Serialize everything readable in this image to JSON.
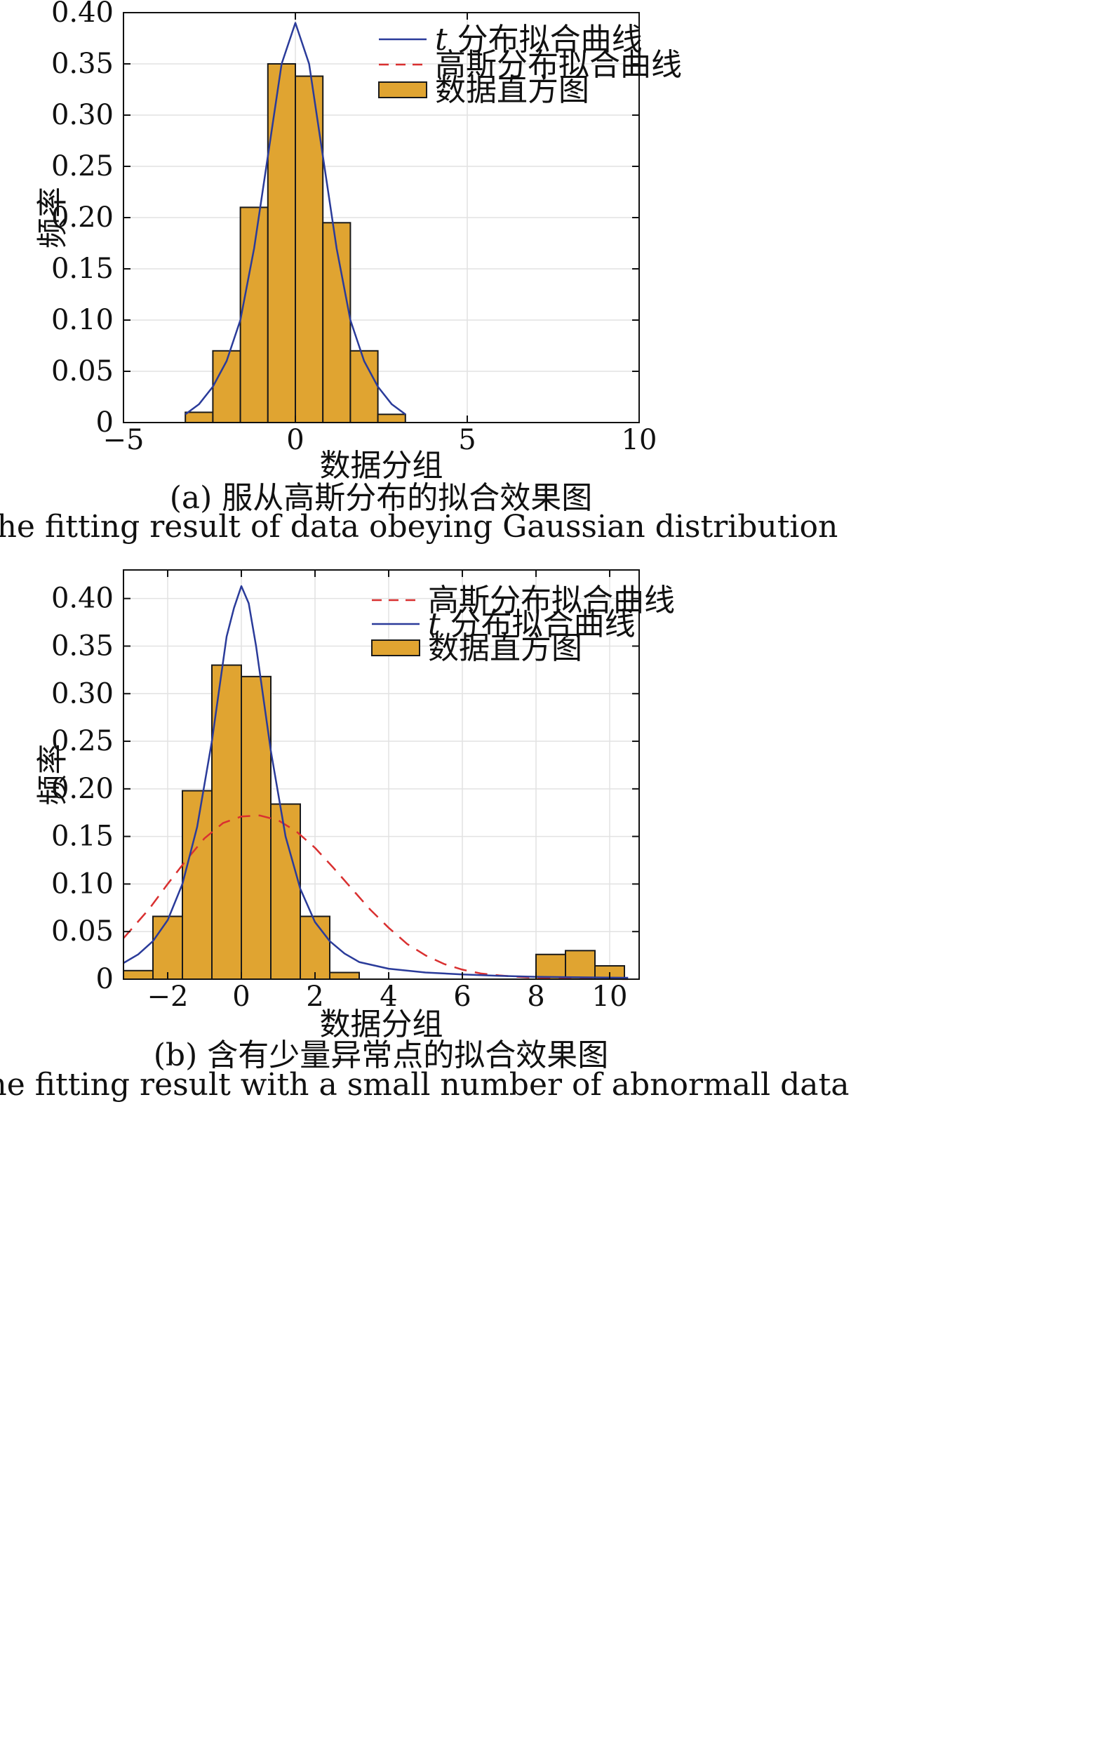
{
  "colors": {
    "bar": "#E0A431",
    "bar_edge": "#1a1a1a",
    "t_curve": "#2A3B9A",
    "gauss_curve": "#D93030",
    "grid": "#E2E2E2"
  },
  "chart_data": [
    {
      "type": "bar",
      "id": "a",
      "xlabel": "数据分组",
      "ylabel": "频率",
      "caption_cn": "(a) 服从高斯分布的拟合效果图",
      "caption_en": "(a) The fitting result of data obeying Gaussian distribution",
      "xlim": [
        -5,
        10
      ],
      "ylim": [
        0,
        0.4
      ],
      "xticks": [
        -5,
        0,
        5,
        10
      ],
      "xtick_labels": [
        "−5",
        "0",
        "5",
        "10"
      ],
      "yticks": [
        0,
        0.05,
        0.1,
        0.15,
        0.2,
        0.25,
        0.3,
        0.35,
        0.4
      ],
      "ytick_labels": [
        "0",
        "0.05",
        "0.10",
        "0.15",
        "0.20",
        "0.25",
        "0.30",
        "0.35",
        "0.40"
      ],
      "grid": true,
      "legend_position": "top-right",
      "legend": [
        {
          "name": "t 分布拟合曲线",
          "italic_prefix": "t",
          "text": " 分布拟合曲线",
          "style": "solid-blue"
        },
        {
          "name": "高斯分布拟合曲线",
          "text": "高斯分布拟合曲线",
          "style": "dashed-red"
        },
        {
          "name": "数据直方图",
          "text": "数据直方图",
          "style": "bar"
        }
      ],
      "bins": [
        {
          "x0": -3.2,
          "x1": -2.4,
          "value": 0.01
        },
        {
          "x0": -2.4,
          "x1": -1.6,
          "value": 0.07
        },
        {
          "x0": -1.6,
          "x1": -0.8,
          "value": 0.21
        },
        {
          "x0": -0.8,
          "x1": 0.0,
          "value": 0.35
        },
        {
          "x0": 0.0,
          "x1": 0.8,
          "value": 0.338
        },
        {
          "x0": 0.8,
          "x1": 1.6,
          "value": 0.195
        },
        {
          "x0": 1.6,
          "x1": 2.4,
          "value": 0.07
        },
        {
          "x0": 2.4,
          "x1": 3.2,
          "value": 0.008
        }
      ],
      "curves": [
        {
          "name": "t 分布拟合曲线",
          "style": "solid-blue",
          "x": [
            -3.2,
            -2.8,
            -2.4,
            -2.0,
            -1.6,
            -1.2,
            -0.8,
            -0.4,
            0.0,
            0.4,
            0.8,
            1.2,
            1.6,
            2.0,
            2.4,
            2.8,
            3.2
          ],
          "y": [
            0.008,
            0.018,
            0.035,
            0.06,
            0.1,
            0.17,
            0.26,
            0.35,
            0.39,
            0.35,
            0.26,
            0.17,
            0.1,
            0.06,
            0.035,
            0.018,
            0.008
          ]
        }
      ]
    },
    {
      "type": "bar",
      "id": "b",
      "xlabel": "数据分组",
      "ylabel": "频率",
      "caption_cn": "(b) 含有少量异常点的拟合效果图",
      "caption_en": "(b) The fitting result with a small number of abnormall data",
      "xlim": [
        -3.2,
        10.8
      ],
      "ylim": [
        0,
        0.43
      ],
      "xticks": [
        -2,
        0,
        2,
        4,
        6,
        8,
        10
      ],
      "xtick_labels": [
        "−2",
        "0",
        "2",
        "4",
        "6",
        "8",
        "10"
      ],
      "yticks": [
        0,
        0.05,
        0.1,
        0.15,
        0.2,
        0.25,
        0.3,
        0.35,
        0.4
      ],
      "ytick_labels": [
        "0",
        "0.05",
        "0.10",
        "0.15",
        "0.20",
        "0.25",
        "0.30",
        "0.35",
        "0.40"
      ],
      "grid": true,
      "legend_position": "top-right",
      "legend": [
        {
          "name": "高斯分布拟合曲线",
          "text": "高斯分布拟合曲线",
          "style": "dashed-red"
        },
        {
          "name": "t 分布拟合曲线",
          "italic_prefix": "t",
          "text": " 分布拟合曲线",
          "style": "solid-blue"
        },
        {
          "name": "数据直方图",
          "text": "数据直方图",
          "style": "bar"
        }
      ],
      "bins": [
        {
          "x0": -3.2,
          "x1": -2.4,
          "value": 0.009
        },
        {
          "x0": -2.4,
          "x1": -1.6,
          "value": 0.066
        },
        {
          "x0": -1.6,
          "x1": -0.8,
          "value": 0.198
        },
        {
          "x0": -0.8,
          "x1": 0.0,
          "value": 0.33
        },
        {
          "x0": 0.0,
          "x1": 0.8,
          "value": 0.318
        },
        {
          "x0": 0.8,
          "x1": 1.6,
          "value": 0.184
        },
        {
          "x0": 1.6,
          "x1": 2.4,
          "value": 0.066
        },
        {
          "x0": 2.4,
          "x1": 3.2,
          "value": 0.007
        },
        {
          "x0": 8.0,
          "x1": 8.8,
          "value": 0.026
        },
        {
          "x0": 8.8,
          "x1": 9.6,
          "value": 0.03
        },
        {
          "x0": 9.6,
          "x1": 10.4,
          "value": 0.014
        }
      ],
      "curves": [
        {
          "name": "高斯分布拟合曲线",
          "style": "dashed-red",
          "x": [
            -3.2,
            -2.5,
            -2.0,
            -1.5,
            -1.0,
            -0.5,
            0.0,
            0.5,
            1.0,
            1.5,
            2.0,
            2.5,
            3.0,
            3.5,
            4.0,
            4.5,
            5.0,
            5.5,
            6.0,
            6.5,
            7.0,
            7.5,
            8.0,
            9.0,
            10.0,
            10.5
          ],
          "y": [
            0.043,
            0.074,
            0.1,
            0.125,
            0.148,
            0.164,
            0.171,
            0.172,
            0.167,
            0.155,
            0.138,
            0.117,
            0.095,
            0.073,
            0.054,
            0.037,
            0.025,
            0.016,
            0.01,
            0.006,
            0.004,
            0.0025,
            0.0015,
            0.0006,
            0.0002,
            0.0001
          ]
        },
        {
          "name": "t 分布拟合曲线",
          "style": "solid-blue",
          "x": [
            -3.2,
            -2.8,
            -2.4,
            -2.0,
            -1.6,
            -1.2,
            -0.8,
            -0.4,
            -0.2,
            0.0,
            0.2,
            0.4,
            0.8,
            1.2,
            1.6,
            2.0,
            2.4,
            2.8,
            3.2,
            4.0,
            5.0,
            6.0,
            7.0,
            8.0,
            9.0,
            10.5
          ],
          "y": [
            0.017,
            0.026,
            0.04,
            0.062,
            0.1,
            0.16,
            0.25,
            0.36,
            0.39,
            0.413,
            0.395,
            0.35,
            0.24,
            0.15,
            0.095,
            0.06,
            0.04,
            0.027,
            0.018,
            0.011,
            0.007,
            0.005,
            0.0035,
            0.0025,
            0.002,
            0.0015
          ]
        }
      ]
    }
  ]
}
